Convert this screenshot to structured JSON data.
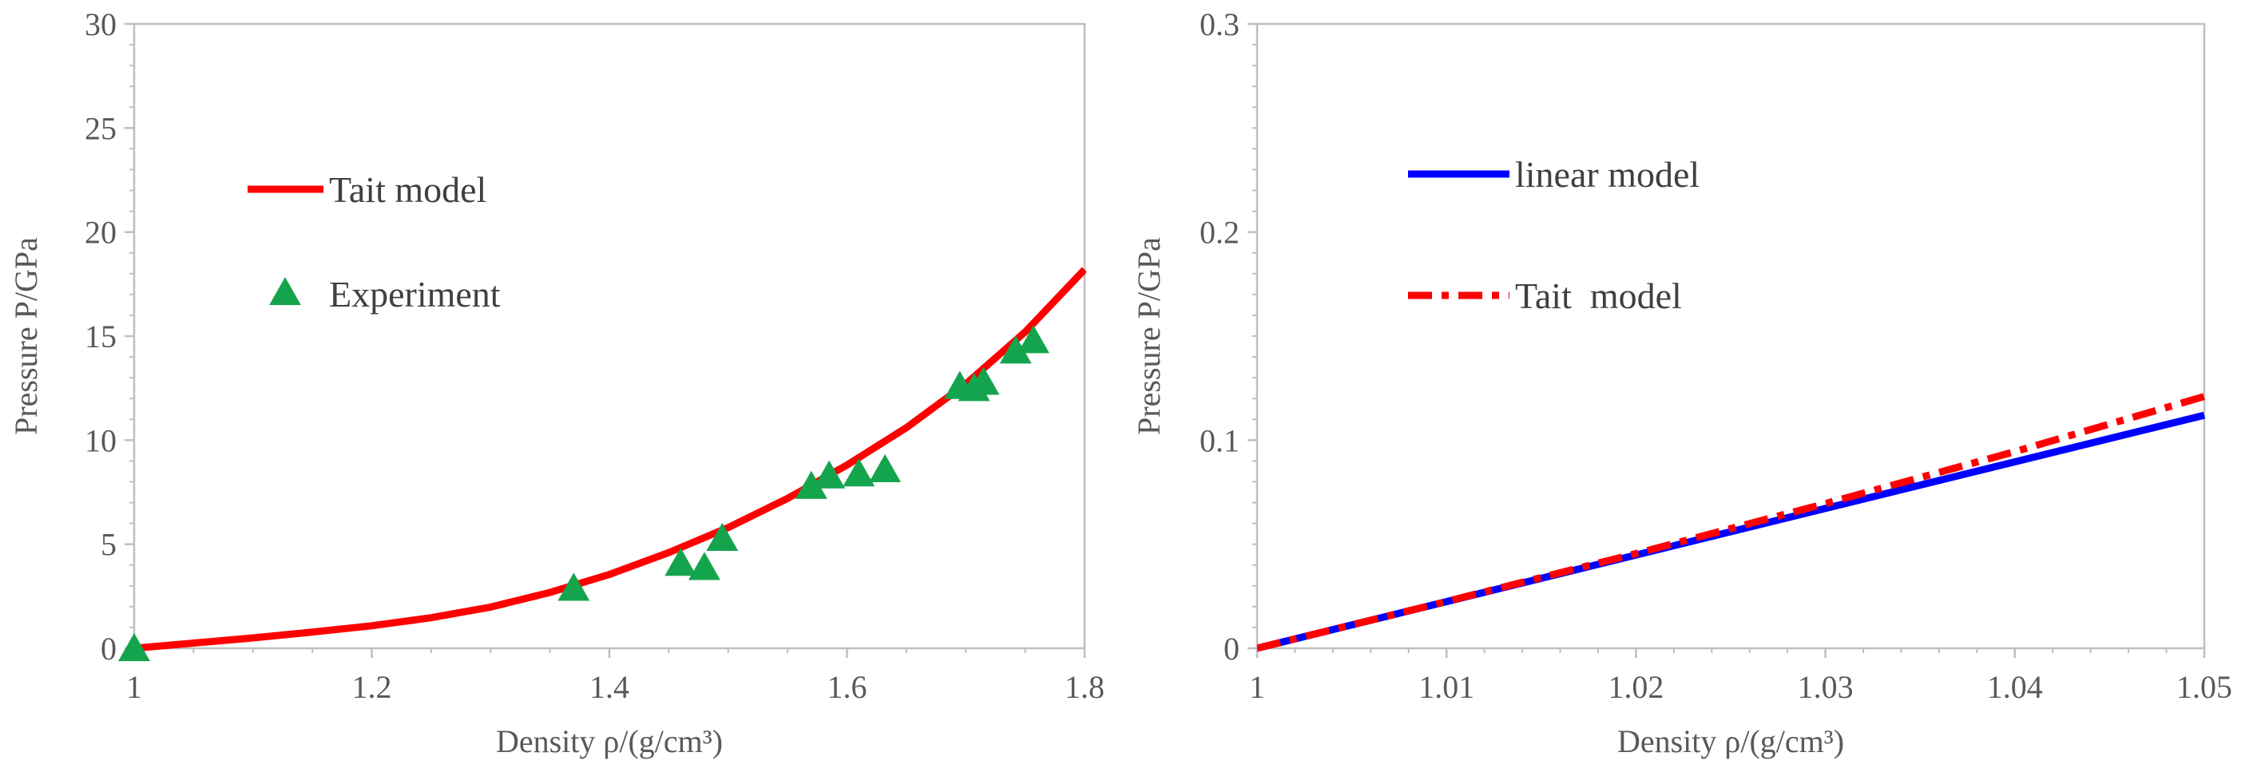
{
  "chart_data": [
    {
      "type": "line",
      "xlabel": "Density ρ/(g/cm³)",
      "ylabel": "Pressure P/GPa",
      "xlim": [
        1,
        1.8
      ],
      "ylim": [
        0,
        30
      ],
      "xticks": [
        "1",
        "1.2",
        "1.4",
        "1.6",
        "1.8"
      ],
      "yticks": [
        "0",
        "5",
        "10",
        "15",
        "20",
        "25",
        "30"
      ],
      "grid": false,
      "legend_position": "upper-left",
      "series": [
        {
          "name": "Tait model",
          "kind": "line",
          "style": "solid",
          "color": "#ff0000",
          "x": [
            1.0,
            1.05,
            1.1,
            1.15,
            1.2,
            1.25,
            1.3,
            1.35,
            1.4,
            1.45,
            1.5,
            1.55,
            1.6,
            1.65,
            1.7,
            1.75,
            1.8
          ],
          "y": [
            0.0,
            0.25,
            0.5,
            0.78,
            1.08,
            1.47,
            1.98,
            2.68,
            3.55,
            4.6,
            5.8,
            7.2,
            8.8,
            10.6,
            12.7,
            15.2,
            18.2
          ]
        },
        {
          "name": "Experiment",
          "kind": "scatter",
          "marker": "triangle",
          "color": "#14a44d",
          "x": [
            1.0,
            1.37,
            1.46,
            1.48,
            1.495,
            1.57,
            1.585,
            1.61,
            1.632,
            1.695,
            1.707,
            1.715,
            1.742,
            1.757
          ],
          "y": [
            0.0,
            2.9,
            4.1,
            3.9,
            5.3,
            7.8,
            8.3,
            8.4,
            8.6,
            12.6,
            12.5,
            12.8,
            14.3,
            14.8
          ]
        }
      ]
    },
    {
      "type": "line",
      "xlabel": "Density ρ/(g/cm³)",
      "ylabel": "Pressure  P/GPa",
      "xlim": [
        1,
        1.05
      ],
      "ylim": [
        0,
        0.3
      ],
      "xticks": [
        "1",
        "1.01",
        "1.02",
        "1.03",
        "1.04",
        "1.05"
      ],
      "yticks": [
        "0",
        "0.1",
        "0.2",
        "0.3"
      ],
      "grid": false,
      "legend_position": "upper-left",
      "series": [
        {
          "name": "linear model",
          "kind": "line",
          "style": "solid",
          "color": "#0000ff",
          "x": [
            1.0,
            1.05
          ],
          "y": [
            0.0,
            0.112
          ]
        },
        {
          "name": "Tait  model",
          "kind": "line",
          "style": "dashdot",
          "color": "#ff0000",
          "x": [
            1.0,
            1.01,
            1.02,
            1.03,
            1.04,
            1.05
          ],
          "y": [
            0.0,
            0.0225,
            0.0455,
            0.0695,
            0.0945,
            0.121
          ]
        }
      ]
    }
  ]
}
